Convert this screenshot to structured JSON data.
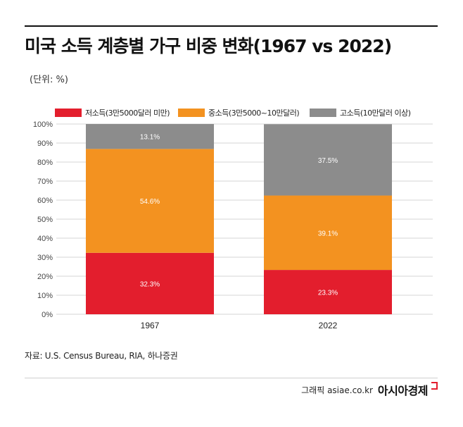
{
  "header": {
    "title": "미국 소득 계층별 가구 비중 변화(1967 vs 2022)",
    "unit": "(단위: %)"
  },
  "footer": {
    "source": "자료: U.S. Census Bureau, RIA, 하나증권",
    "credit": "그래픽  asiae.co.kr",
    "brand": "아시아경제"
  },
  "colors": {
    "low": "#e31e2d",
    "middle": "#f39220",
    "high": "#8c8c8c",
    "grid": "#d6d6d6"
  },
  "chart_data": {
    "type": "bar",
    "stacked": true,
    "categories": [
      "1967",
      "2022"
    ],
    "series": [
      {
        "name": "저소득(3만5000달러 미만)",
        "values": [
          32.3,
          23.3
        ],
        "labels": [
          "32.3%",
          "23.3%"
        ],
        "color": "#e31e2d"
      },
      {
        "name": "중소득(3만5000~10만달러)",
        "values": [
          54.6,
          39.1
        ],
        "labels": [
          "54.6%",
          "39.1%"
        ],
        "color": "#f39220"
      },
      {
        "name": "고소득(10만달러 이상)",
        "values": [
          13.1,
          37.5
        ],
        "labels": [
          "13.1%",
          "37.5%"
        ],
        "color": "#8c8c8c"
      }
    ],
    "ylim": [
      0,
      100
    ],
    "yticks": [
      "0%",
      "10%",
      "20%",
      "30%",
      "40%",
      "50%",
      "60%",
      "70%",
      "80%",
      "90%",
      "100%"
    ],
    "grid": true,
    "legend": "top"
  }
}
